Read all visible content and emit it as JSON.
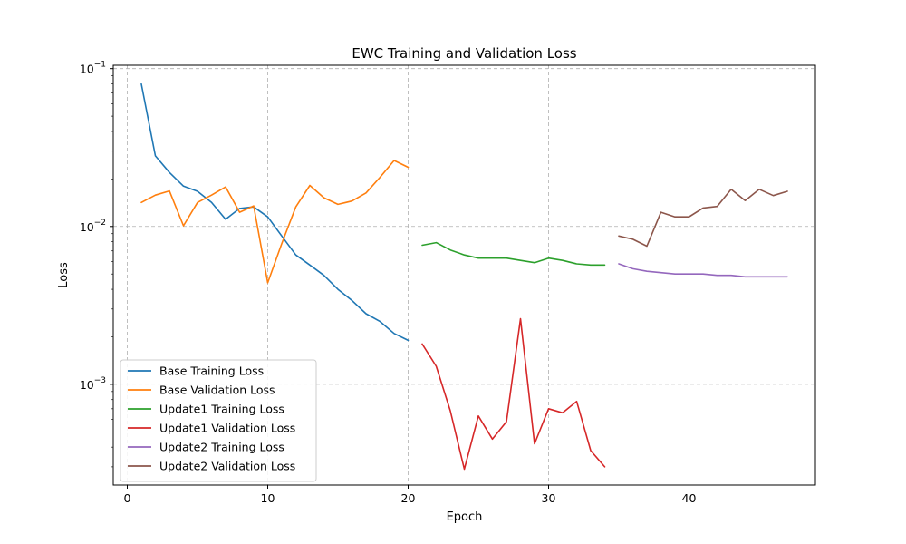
{
  "chart_data": {
    "type": "line",
    "title": "EWC Training and Validation Loss",
    "xlabel": "Epoch",
    "ylabel": "Loss",
    "y_scale": "log",
    "xlim": [
      -1,
      49
    ],
    "ylim": [
      0.00023,
      0.105
    ],
    "x_ticks": [
      0,
      10,
      20,
      30,
      40
    ],
    "y_ticks": [
      {
        "value": 0.001,
        "base": "10",
        "exp": "−3"
      },
      {
        "value": 0.01,
        "base": "10",
        "exp": "−2"
      },
      {
        "value": 0.1,
        "base": "10",
        "exp": "−1"
      }
    ],
    "grid": true,
    "legend_position": "lower-left",
    "series": [
      {
        "name": "Base Training Loss",
        "color": "#1f77b4",
        "x": [
          1,
          2,
          3,
          4,
          5,
          6,
          7,
          8,
          9,
          10,
          11,
          12,
          13,
          14,
          15,
          16,
          17,
          18,
          19,
          20
        ],
        "values": [
          0.08,
          0.028,
          0.022,
          0.018,
          0.0167,
          0.0142,
          0.0111,
          0.013,
          0.0133,
          0.0115,
          0.0087,
          0.0066,
          0.0057,
          0.0049,
          0.004,
          0.0034,
          0.0028,
          0.0025,
          0.0021,
          0.0019
        ]
      },
      {
        "name": "Base Validation Loss",
        "color": "#ff7f0e",
        "x": [
          1,
          2,
          3,
          4,
          5,
          6,
          7,
          8,
          9,
          10,
          11,
          12,
          13,
          14,
          15,
          16,
          17,
          18,
          19,
          20
        ],
        "values": [
          0.0142,
          0.0158,
          0.0168,
          0.0101,
          0.0142,
          0.0158,
          0.0178,
          0.0123,
          0.0135,
          0.0044,
          0.0078,
          0.0133,
          0.0182,
          0.0152,
          0.0138,
          0.0145,
          0.0163,
          0.0205,
          0.0262,
          0.0237
        ]
      },
      {
        "name": "Update1 Training Loss",
        "color": "#2ca02c",
        "x": [
          21,
          22,
          23,
          24,
          25,
          26,
          27,
          28,
          29,
          30,
          31,
          32,
          33,
          34
        ],
        "values": [
          0.0076,
          0.0079,
          0.0071,
          0.0066,
          0.0063,
          0.0063,
          0.0063,
          0.0061,
          0.0059,
          0.0063,
          0.0061,
          0.0058,
          0.0057,
          0.0057
        ]
      },
      {
        "name": "Update1 Validation Loss",
        "color": "#d62728",
        "x": [
          21,
          22,
          23,
          24,
          25,
          26,
          27,
          28,
          29,
          30,
          31,
          32,
          33,
          34
        ],
        "values": [
          0.0018,
          0.0013,
          0.00068,
          0.00029,
          0.00063,
          0.00045,
          0.00058,
          0.0026,
          0.00042,
          0.0007,
          0.00066,
          0.00078,
          0.00038,
          0.0003
        ]
      },
      {
        "name": "Update2 Training Loss",
        "color": "#9467bd",
        "x": [
          35,
          36,
          37,
          38,
          39,
          40,
          41,
          42,
          43,
          44,
          45,
          46,
          47
        ],
        "values": [
          0.0058,
          0.0054,
          0.0052,
          0.0051,
          0.005,
          0.005,
          0.005,
          0.0049,
          0.0049,
          0.0048,
          0.0048,
          0.0048,
          0.0048
        ]
      },
      {
        "name": "Update2 Validation Loss",
        "color": "#8c564b",
        "x": [
          35,
          36,
          37,
          38,
          39,
          40,
          41,
          42,
          43,
          44,
          45,
          46,
          47
        ],
        "values": [
          0.0087,
          0.0083,
          0.0075,
          0.0123,
          0.0115,
          0.0115,
          0.0131,
          0.0134,
          0.0172,
          0.0146,
          0.0172,
          0.0157,
          0.0167
        ]
      }
    ]
  }
}
